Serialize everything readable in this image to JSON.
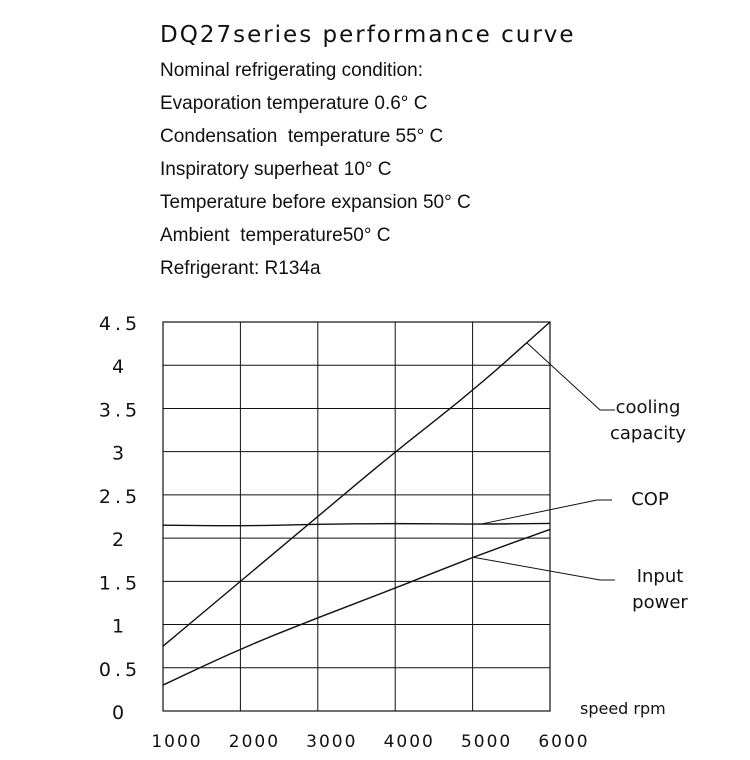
{
  "header": {
    "title": "DQ27series performance curve",
    "conditions": [
      "Nominal refrigerating condition:",
      "Evaporation temperature 0.6° C",
      "Condensation  temperature 55° C",
      "Inspiratory superheat 10° C",
      "Temperature before expansion 50° C",
      "Ambient  temperature50° C",
      "Refrigerant: R134a"
    ]
  },
  "chart_data": {
    "type": "line",
    "title": "DQ27series performance curve",
    "xlabel": "speed rpm",
    "ylabel": "",
    "xlim": [
      1000,
      6000
    ],
    "ylim": [
      0,
      4.5
    ],
    "x_ticks": [
      1000,
      2000,
      3000,
      4000,
      5000,
      6000
    ],
    "x_tick_labels": [
      "1000",
      "2000",
      "3000",
      "4000",
      "5000",
      "6000"
    ],
    "y_ticks": [
      0,
      0.5,
      1,
      1.5,
      2,
      2.5,
      3,
      3.5,
      4,
      4.5
    ],
    "y_tick_labels": [
      "0",
      "0.5",
      "1",
      "1.5",
      "2",
      "2.5",
      "3",
      "3.5",
      "4",
      "4.5"
    ],
    "grid": true,
    "legend": "callout labels on right",
    "series": [
      {
        "name": "cooling capacity",
        "x": [
          1000,
          2000,
          3000,
          4000,
          5000,
          6000
        ],
        "values": [
          0.75,
          1.5,
          2.25,
          3.0,
          3.7,
          4.5
        ]
      },
      {
        "name": "COP",
        "x": [
          1000,
          2000,
          3000,
          4000,
          5000,
          6000
        ],
        "values": [
          2.15,
          2.14,
          2.16,
          2.17,
          2.16,
          2.17
        ]
      },
      {
        "name": "Input power",
        "x": [
          1000,
          2000,
          3000,
          4000,
          5000,
          6000
        ],
        "values": [
          0.3,
          0.72,
          1.08,
          1.42,
          1.78,
          2.1
        ]
      }
    ],
    "annotations": [
      {
        "series": 0,
        "lines": [
          "cooling",
          "capacity"
        ]
      },
      {
        "series": 1,
        "lines": [
          "COP"
        ]
      },
      {
        "series": 2,
        "lines": [
          "Input",
          "power"
        ]
      }
    ]
  }
}
